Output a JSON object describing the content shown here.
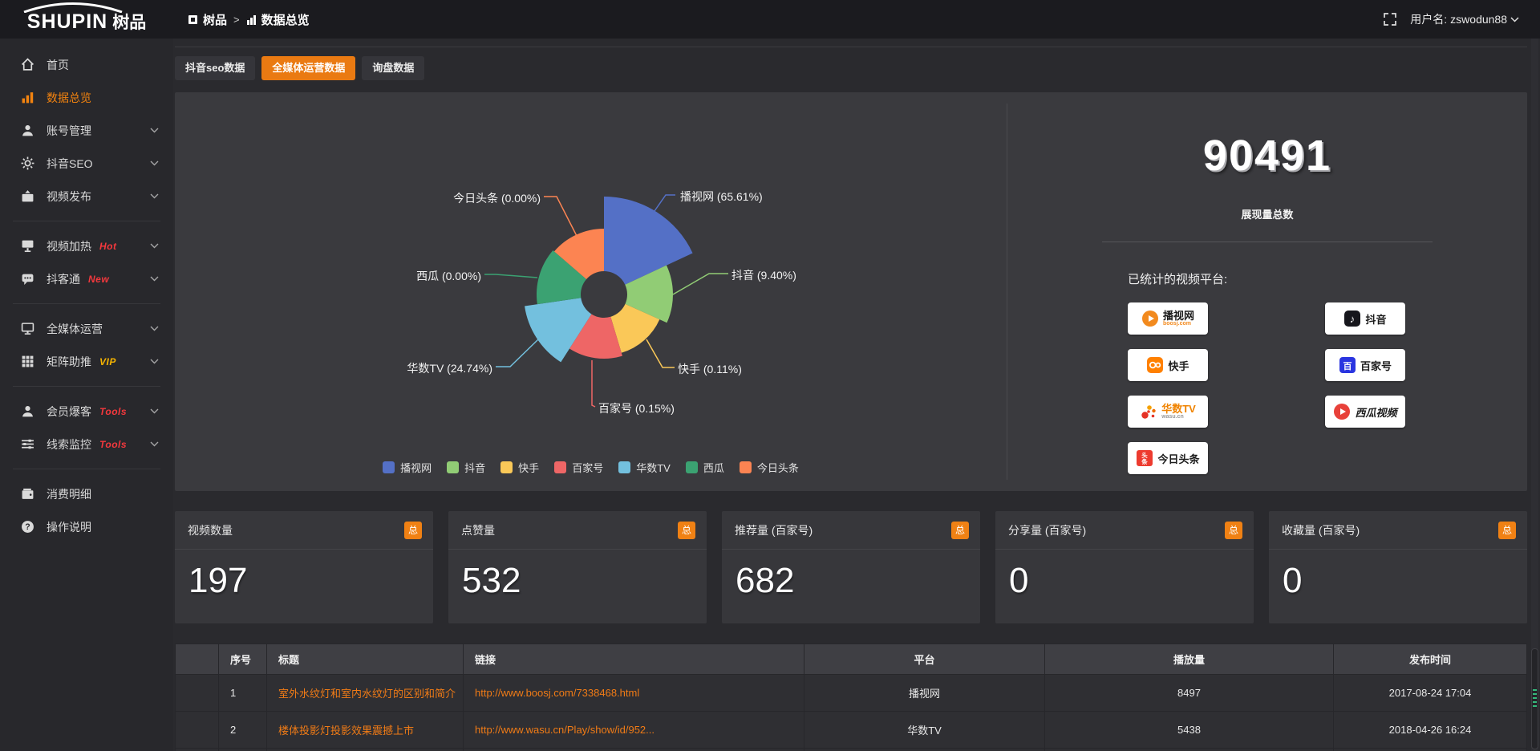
{
  "theme": {
    "accent": "#ee7b11",
    "panel_bg": "#3a3a3e",
    "page_bg": "#29292d"
  },
  "header": {
    "logo_en": "SHUPIN",
    "logo_cn": "树品",
    "breadcrumb": [
      {
        "label": "树品"
      },
      {
        "label": "数据总览"
      }
    ],
    "separator": ">",
    "user_label": "用户名:",
    "username": "zswodun88"
  },
  "sidebar": {
    "items": [
      {
        "label": "首页",
        "icon": "home-icon"
      },
      {
        "label": "数据总览",
        "icon": "bar-chart-icon",
        "active": true
      },
      {
        "label": "账号管理",
        "icon": "user-icon",
        "chevron": true
      },
      {
        "label": "抖音SEO",
        "icon": "gear-icon",
        "chevron": true
      },
      {
        "label": "视频发布",
        "icon": "publish-icon",
        "chevron": true
      },
      {
        "label": "视频加热",
        "badge": "Hot",
        "badge_color": "#f5383d",
        "icon": "screen-icon",
        "chevron": true
      },
      {
        "label": "抖客通",
        "badge": "New",
        "badge_color": "#f5383d",
        "icon": "chat-icon",
        "chevron": true
      },
      {
        "label": "全媒体运营",
        "icon": "monitor-icon",
        "chevron": true
      },
      {
        "label": "矩阵助推",
        "badge": "VIP",
        "badge_color": "#f7b500",
        "icon": "grid-icon",
        "chevron": true
      },
      {
        "label": "会员爆客",
        "badge": "Tools",
        "badge_color": "#f5383d",
        "icon": "member-icon",
        "chevron": true
      },
      {
        "label": "线索监控",
        "badge": "Tools",
        "badge_color": "#f5383d",
        "icon": "sliders-icon",
        "chevron": true
      },
      {
        "label": "消费明细",
        "icon": "wallet-icon"
      },
      {
        "label": "操作说明",
        "icon": "help-icon"
      }
    ]
  },
  "tabs": [
    {
      "label": "抖音seo数据"
    },
    {
      "label": "全媒体运营数据",
      "active": true
    },
    {
      "label": "询盘数据"
    }
  ],
  "chart_data": {
    "type": "pie",
    "variant": "nightingale-rose",
    "title": "",
    "legend_position": "bottom",
    "center": [
      535,
      252
    ],
    "inner_radius": 29,
    "slices": [
      {
        "name": "播视网",
        "pct": 65.61,
        "label": "播视网 (65.61%)",
        "color": "#5470c6",
        "radius": 122,
        "span_deg": 65.0
      },
      {
        "name": "抖音",
        "pct": 9.4,
        "label": "抖音 (9.40%)",
        "color": "#91cc75",
        "radius": 86,
        "span_deg": 49.17
      },
      {
        "name": "快手",
        "pct": 0.11,
        "label": "快手 (0.11%)",
        "color": "#fac858",
        "radius": 76,
        "span_deg": 49.17
      },
      {
        "name": "百家号",
        "pct": 0.15,
        "label": "百家号 (0.15%)",
        "color": "#ee6666",
        "radius": 80,
        "span_deg": 49.17
      },
      {
        "name": "华数TV",
        "pct": 24.74,
        "label": "华数TV (24.74%)",
        "color": "#73c0de",
        "radius": 100,
        "span_deg": 49.17
      },
      {
        "name": "西瓜",
        "pct": 0.0,
        "label": "西瓜 (0.00%)",
        "color": "#3ba272",
        "radius": 84,
        "span_deg": 49.17
      },
      {
        "name": "今日头条",
        "pct": 0.0,
        "label": "今日头条 (0.00%)",
        "color": "#fc8452",
        "radius": 82,
        "span_deg": 49.15
      }
    ]
  },
  "summary": {
    "total": "90491",
    "total_label": "展现量总数",
    "platforms_label": "已统计的视频平台:",
    "platforms": [
      {
        "name": "播视网",
        "sub": "boosj.com"
      },
      {
        "name": "抖音"
      },
      {
        "name": "快手"
      },
      {
        "name": "百家号"
      },
      {
        "name": "华数TV",
        "sub": "wasu.cn"
      },
      {
        "name": "西瓜视频"
      },
      {
        "name": "今日头条"
      }
    ]
  },
  "stat_cards": [
    {
      "title": "视频数量",
      "badge": "总",
      "value": "197"
    },
    {
      "title": "点赞量",
      "badge": "总",
      "value": "532"
    },
    {
      "title": "推荐量 (百家号)",
      "badge": "总",
      "value": "682"
    },
    {
      "title": "分享量 (百家号)",
      "badge": "总",
      "value": "0"
    },
    {
      "title": "收藏量 (百家号)",
      "badge": "总",
      "value": "0"
    }
  ],
  "table": {
    "headers": [
      "序号",
      "标题",
      "链接",
      "平台",
      "播放量",
      "发布时间"
    ],
    "rows": [
      {
        "no": "1",
        "title": "室外水纹灯和室内水纹灯的区别和简介",
        "link": "http://www.boosj.com/7338468.html",
        "platform": "播视网",
        "plays": "8497",
        "time": "2017-08-24 17:04"
      },
      {
        "no": "2",
        "title": "楼体投影灯投影效果震撼上市",
        "link": "http://www.wasu.cn/Play/show/id/952...",
        "platform": "华数TV",
        "plays": "5438",
        "time": "2018-04-26 16:24"
      }
    ]
  }
}
